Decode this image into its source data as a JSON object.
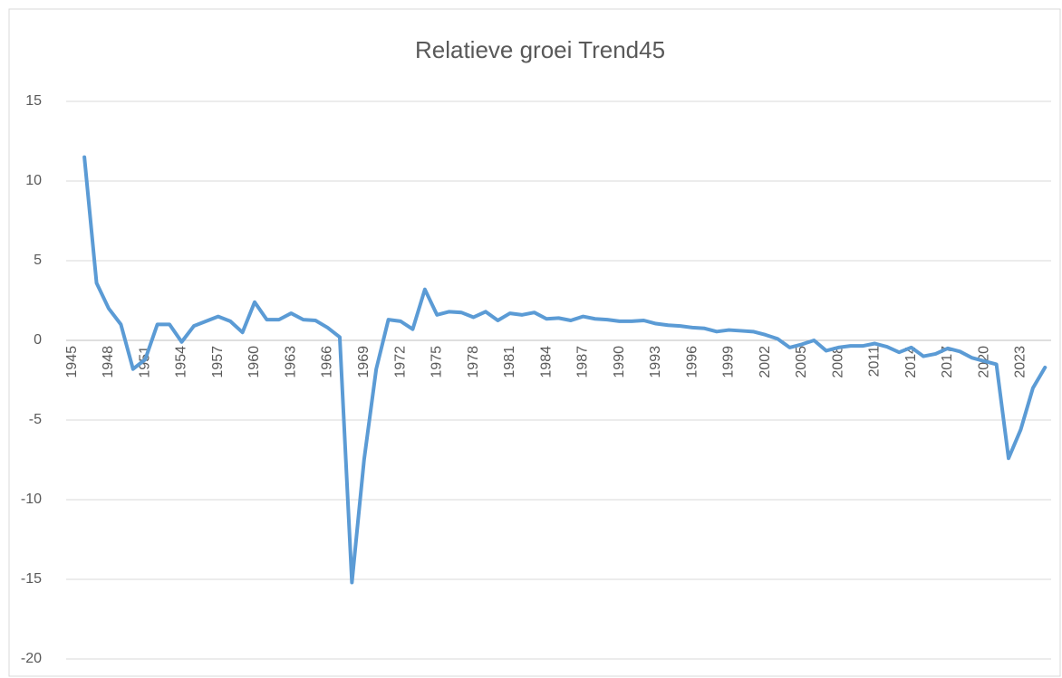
{
  "chart_data": {
    "type": "line",
    "title": "Relatieve groei Trend45",
    "categories": [
      "1945",
      null,
      null,
      "1948",
      null,
      null,
      "1951",
      null,
      null,
      "1954",
      null,
      null,
      "1957",
      null,
      null,
      "1960",
      null,
      null,
      "1963",
      null,
      null,
      "1966",
      null,
      null,
      "1969",
      null,
      null,
      "1972",
      null,
      null,
      "1975",
      null,
      null,
      "1978",
      null,
      null,
      "1981",
      null,
      null,
      "1984",
      null,
      null,
      "1987",
      null,
      null,
      "1990",
      null,
      null,
      "1993",
      null,
      null,
      "1996",
      null,
      null,
      "1999",
      null,
      null,
      "2002",
      null,
      null,
      "2005",
      null,
      null,
      "2008",
      null,
      null,
      "2011",
      null,
      null,
      "2014",
      null,
      null,
      "2017",
      null,
      null,
      "2020",
      null,
      null,
      "2023",
      null,
      null
    ],
    "series": [
      {
        "color": "#5b9bd5",
        "values": [
          null,
          11.5,
          3.6,
          2.0,
          1.0,
          -1.8,
          -1.2,
          1.0,
          1.0,
          -0.1,
          0.9,
          1.2,
          1.5,
          1.2,
          0.5,
          2.4,
          1.3,
          1.3,
          1.7,
          1.3,
          1.25,
          0.8,
          0.2,
          -15.2,
          -7.5,
          -1.8,
          1.3,
          1.2,
          0.7,
          3.2,
          1.6,
          1.8,
          1.75,
          1.45,
          1.8,
          1.25,
          1.7,
          1.6,
          1.75,
          1.35,
          1.4,
          1.25,
          1.5,
          1.35,
          1.3,
          1.2,
          1.2,
          1.25,
          1.05,
          0.95,
          0.9,
          0.8,
          0.75,
          0.55,
          0.65,
          0.6,
          0.55,
          0.35,
          0.1,
          -0.45,
          -0.25,
          0.0,
          -0.65,
          -0.45,
          -0.35,
          -0.35,
          -0.2,
          -0.4,
          -0.75,
          -0.45,
          -1.0,
          -0.85,
          -0.5,
          -0.7,
          -1.1,
          -1.3,
          -1.5,
          -7.4,
          -5.6,
          -3.0,
          -1.7
        ]
      }
    ],
    "ylim": [
      -20,
      15
    ],
    "yticks": [
      -20,
      -15,
      -10,
      -5,
      0,
      5,
      10,
      15
    ],
    "grid": true
  }
}
